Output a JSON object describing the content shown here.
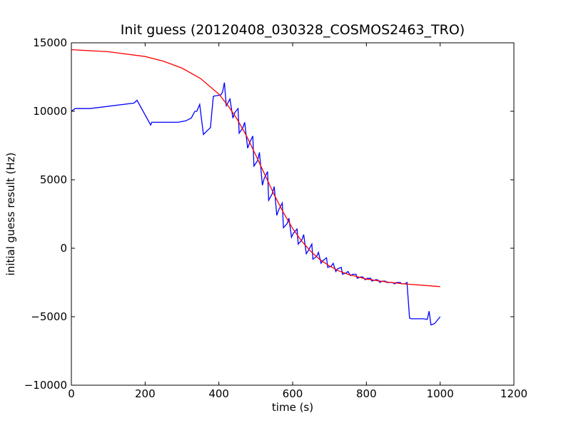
{
  "chart_data": {
    "type": "line",
    "title": "Init guess (20120408_030328_COSMOS2463_TRO)",
    "xlabel": "time (s)",
    "ylabel": "initial guess result (Hz)",
    "xlim": [
      0,
      1200
    ],
    "ylim": [
      -10000,
      15000
    ],
    "xticks": [
      0,
      200,
      400,
      600,
      800,
      1000,
      1200
    ],
    "yticks": [
      -10000,
      -5000,
      0,
      5000,
      10000,
      15000
    ],
    "grid": false,
    "legend": "none",
    "series": [
      {
        "color": "#0000ff",
        "x": [
          0,
          10,
          50,
          170,
          178,
          215,
          218,
          290,
          310,
          325,
          335,
          340,
          348,
          358,
          365,
          377,
          385,
          405,
          410,
          415,
          420,
          430,
          438,
          443,
          452,
          455,
          465,
          470,
          478,
          483,
          492,
          495,
          505,
          510,
          518,
          523,
          532,
          535,
          545,
          550,
          557,
          562,
          572,
          575,
          585,
          590,
          597,
          602,
          612,
          615,
          625,
          630,
          637,
          642,
          652,
          655,
          665,
          670,
          677,
          682,
          692,
          695,
          705,
          710,
          717,
          722,
          732,
          735,
          745,
          750,
          757,
          762,
          772,
          775,
          785,
          790,
          797,
          802,
          812,
          815,
          825,
          830,
          837,
          842,
          852,
          855,
          865,
          870,
          877,
          882,
          892,
          895,
          905,
          910,
          917,
          922,
          955,
          965,
          970,
          975,
          985,
          1000
        ],
        "y": [
          10000,
          10200,
          10200,
          10600,
          10800,
          9000,
          9200,
          9200,
          9300,
          9500,
          10000,
          10000,
          10500,
          8300,
          8500,
          8800,
          11100,
          11200,
          11400,
          12100,
          10400,
          10900,
          9500,
          9900,
          10200,
          8400,
          8800,
          9200,
          7300,
          7700,
          8200,
          6000,
          6400,
          7000,
          4600,
          5100,
          5600,
          3500,
          4000,
          4500,
          2400,
          2800,
          3300,
          1500,
          1800,
          2200,
          800,
          1100,
          1400,
          300,
          600,
          1000,
          -400,
          -200,
          300,
          -800,
          -600,
          -300,
          -1100,
          -900,
          -700,
          -1400,
          -1300,
          -1100,
          -1700,
          -1500,
          -1400,
          -1900,
          -1800,
          -1700,
          -2000,
          -1900,
          -1900,
          -2200,
          -2100,
          -2100,
          -2300,
          -2200,
          -2200,
          -2400,
          -2300,
          -2300,
          -2500,
          -2400,
          -2400,
          -2500,
          -2500,
          -2500,
          -2600,
          -2500,
          -2500,
          -2600,
          -2600,
          -2500,
          -5100,
          -5150,
          -5150,
          -5200,
          -4600,
          -5600,
          -5500,
          -5000
        ]
      },
      {
        "color": "#ff0000",
        "x": [
          0,
          100,
          200,
          250,
          300,
          350,
          400,
          425,
          450,
          475,
          500,
          525,
          550,
          575,
          600,
          625,
          650,
          675,
          700,
          725,
          750,
          800,
          850,
          900,
          950,
          1000
        ],
        "y": [
          14500,
          14350,
          14000,
          13650,
          13150,
          12400,
          11250,
          10400,
          9400,
          8200,
          6800,
          5350,
          3900,
          2600,
          1450,
          500,
          -250,
          -850,
          -1300,
          -1650,
          -1900,
          -2250,
          -2450,
          -2600,
          -2700,
          -2800
        ]
      }
    ]
  }
}
